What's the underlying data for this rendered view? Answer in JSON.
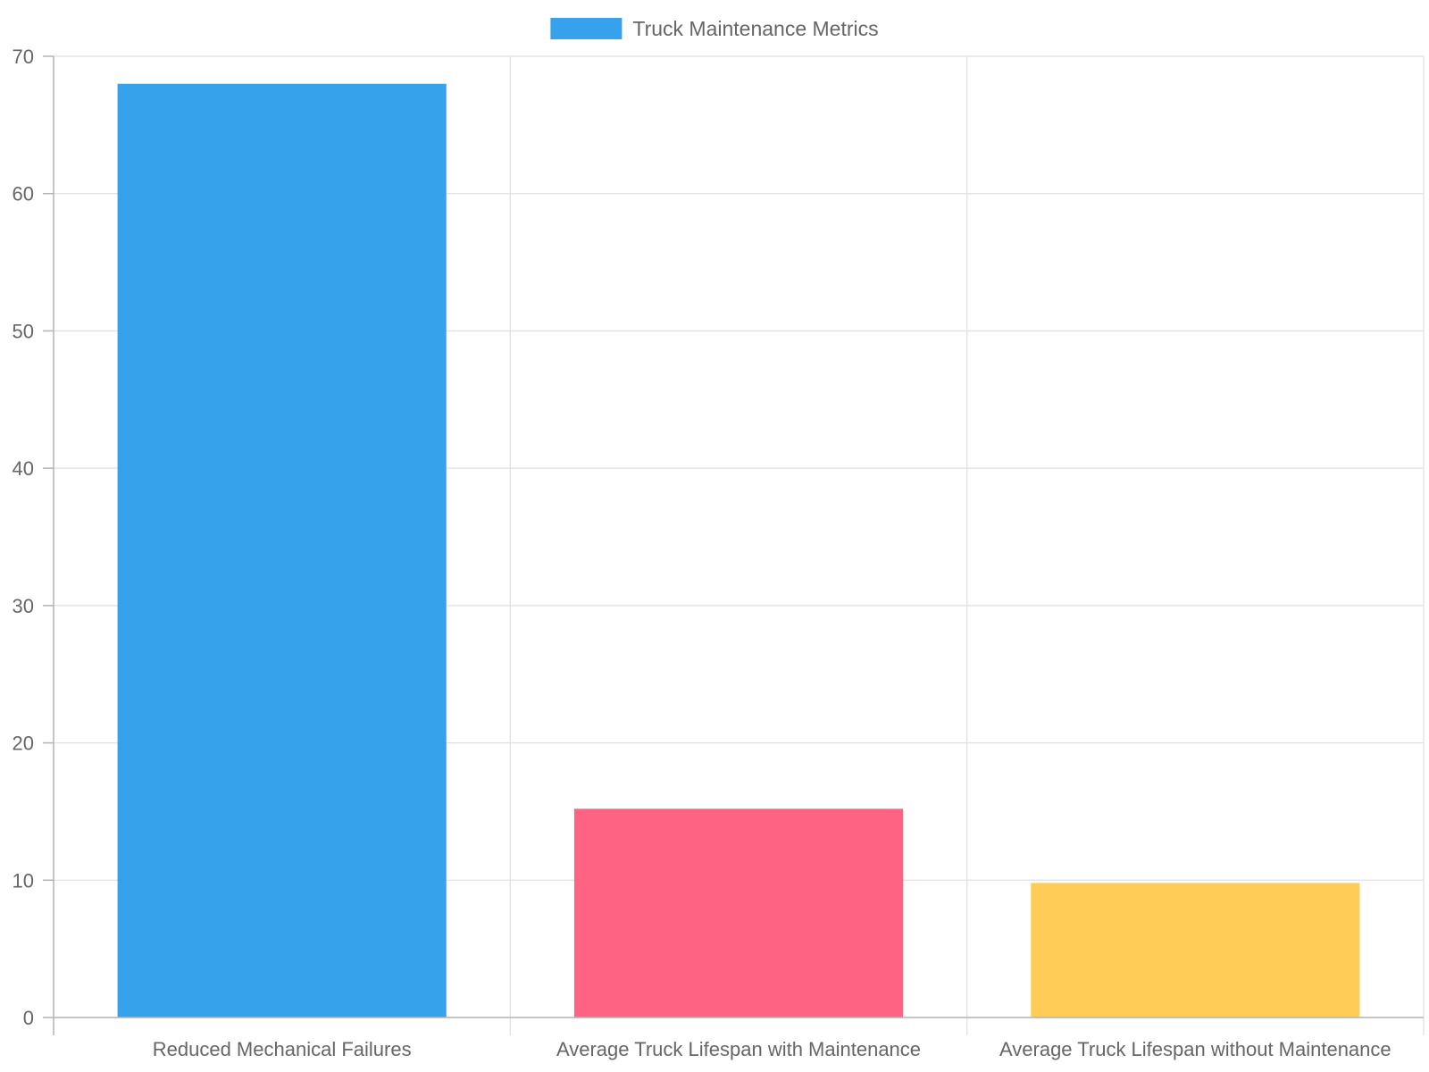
{
  "chart_data": {
    "type": "bar",
    "categories": [
      "Reduced Mechanical Failures",
      "Average Truck Lifespan with Maintenance",
      "Average Truck Lifespan without Maintenance"
    ],
    "series": [
      {
        "name": "Truck Maintenance Metrics",
        "values": [
          68,
          15.2,
          9.8
        ],
        "colors": [
          "#36a2eb",
          "#ff6384",
          "#ffcd56"
        ]
      }
    ],
    "legend_color": "#36a2eb",
    "legend_position": "top",
    "ylim": [
      0,
      70
    ],
    "yticks": [
      0,
      10,
      20,
      30,
      40,
      50,
      60,
      70
    ],
    "grid": true,
    "title": "",
    "xlabel": "",
    "ylabel": ""
  }
}
